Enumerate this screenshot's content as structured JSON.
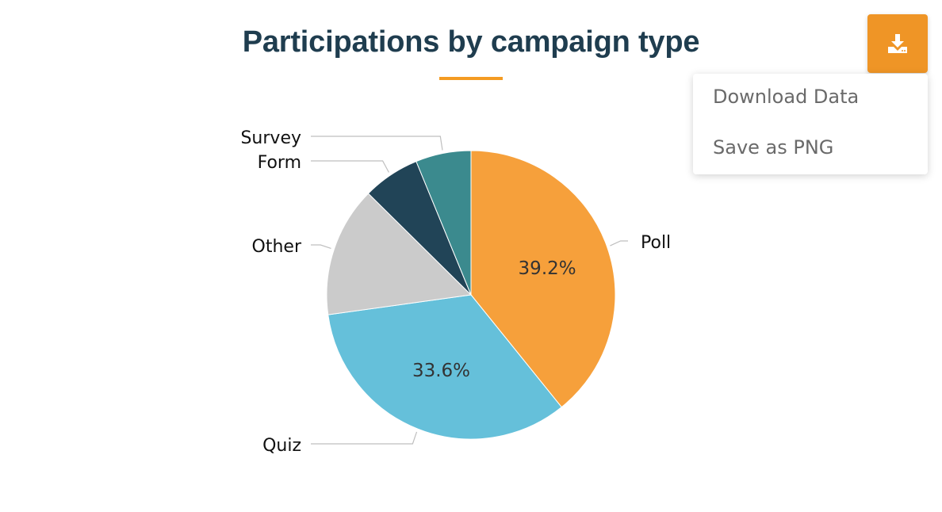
{
  "chart_data": {
    "type": "pie",
    "title": "Participations by campaign type",
    "series": [
      {
        "name": "Poll",
        "value": 39.2,
        "color": "#f6a03b",
        "data_label": "39.2%"
      },
      {
        "name": "Quiz",
        "value": 33.6,
        "color": "#65c0da",
        "data_label": "33.6%"
      },
      {
        "name": "Other",
        "value": 14.6,
        "color": "#cbcbcb",
        "data_label": ""
      },
      {
        "name": "Form",
        "value": 6.4,
        "color": "#214457",
        "data_label": ""
      },
      {
        "name": "Survey",
        "value": 6.2,
        "color": "#3b8a8e",
        "data_label": ""
      }
    ],
    "legend": "none",
    "accent_color": "#f49b22",
    "title_color": "#1f3d4f"
  },
  "export_menu": {
    "button_icon": "download-icon",
    "button_color": "#ef9526",
    "items": [
      "Download Data",
      "Save as PNG"
    ]
  }
}
